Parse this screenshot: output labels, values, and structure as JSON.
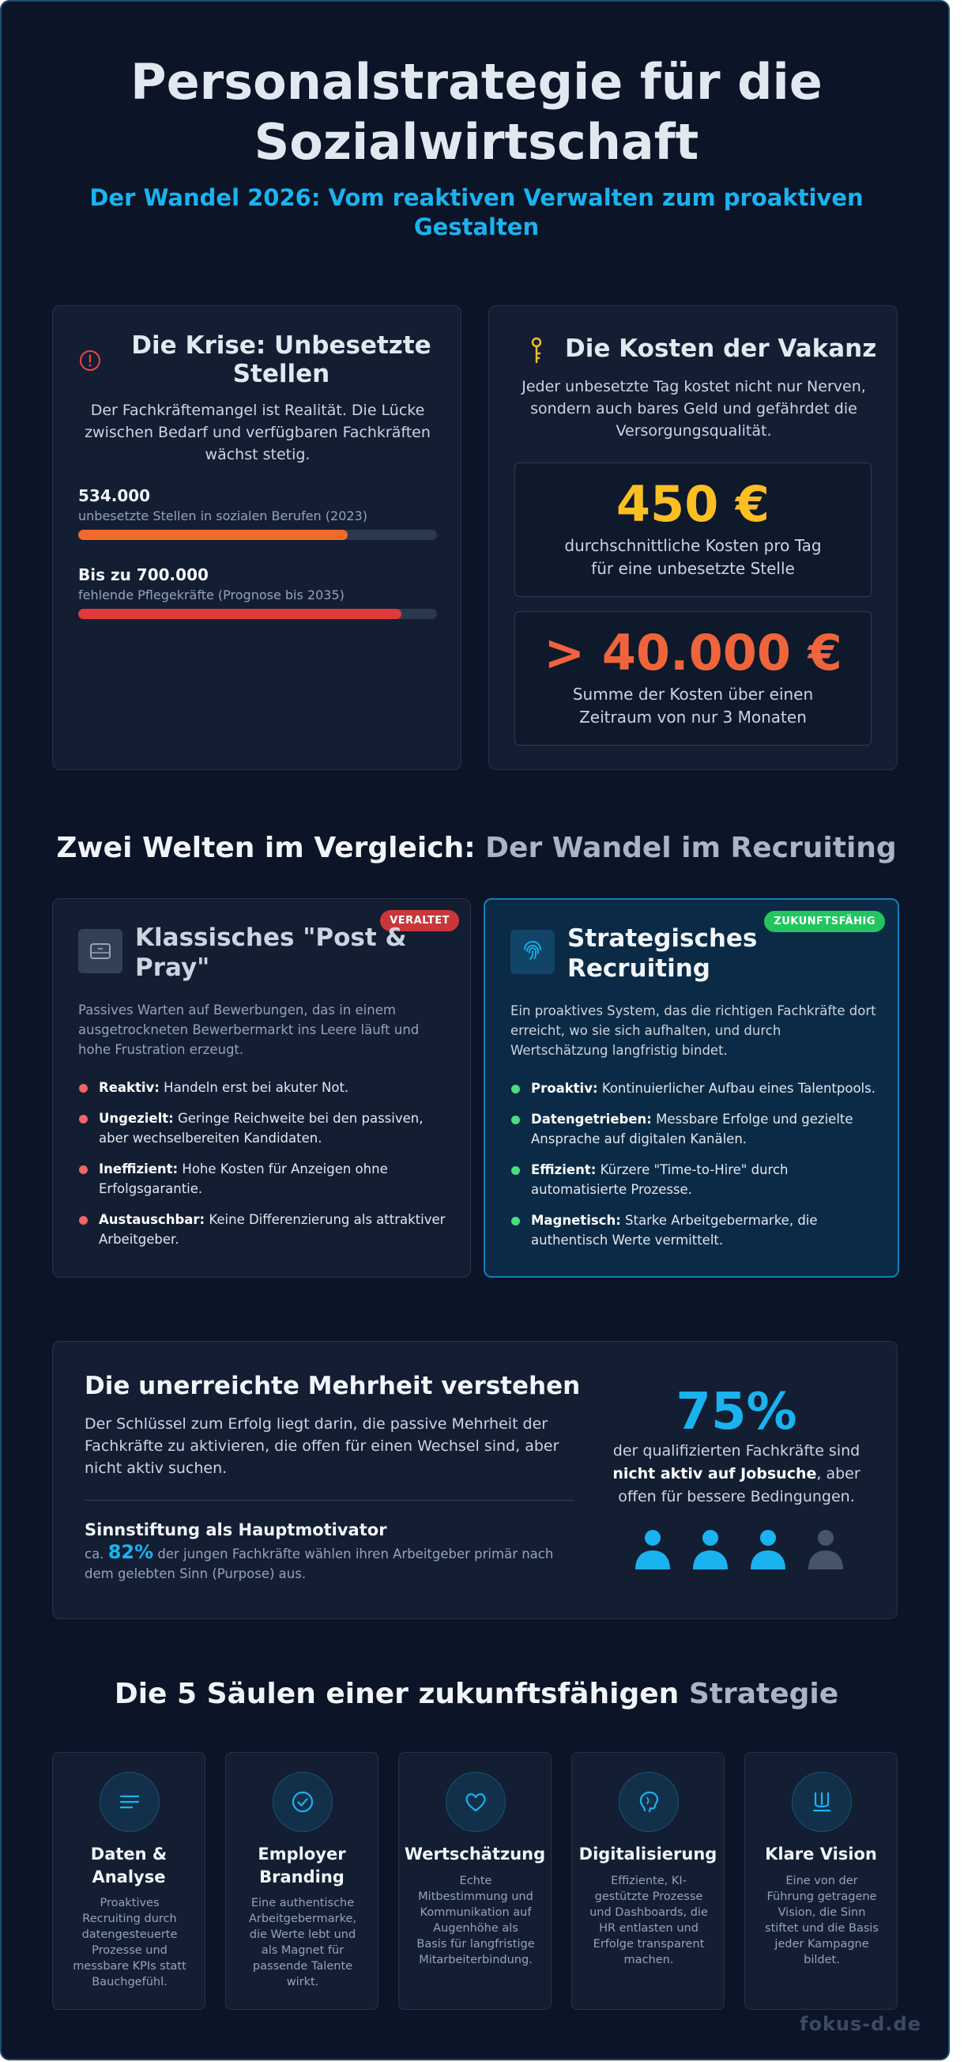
{
  "hero": {
    "title_line1": "Personalstrategie für die",
    "title_line2": "Sozialwirtschaft",
    "subtitle": "Der Wandel 2026: Vom reaktiven Verwalten zum proaktiven Gestalten"
  },
  "crisis": {
    "icon": "alert-circle-icon",
    "title": "Die Krise: Unbesetzte Stellen",
    "text": "Der Fachkräftemangel ist Realität. Die Lücke zwischen Bedarf und verfügbaren Fachkräften wächst stetig.",
    "stats": [
      {
        "value": "534.000",
        "label": "unbesetzte Stellen in sozialen Berufen (2023)",
        "fill": 0.75,
        "color": "#f06a2c"
      },
      {
        "value": "Bis zu 700.000",
        "label": "fehlende Pflegekräfte (Prognose bis 2035)",
        "fill": 0.9,
        "color": "#e23a3a"
      }
    ]
  },
  "costs": {
    "icon": "key-icon",
    "title": "Die Kosten der Vakanz",
    "text": "Jeder unbesetzte Tag kostet nicht nur Nerven, sondern auch bares Geld und gefährdet die Versorgungsqualität.",
    "per_day_value": "450 €",
    "per_day_desc": "durchschnittliche Kosten pro Tag für eine unbesetzte Stelle",
    "total_value": "> 40.000 €",
    "total_desc": "Summe der Kosten über einen Zeitraum von nur 3 Monaten",
    "colors": {
      "per_day": "#fbbf24",
      "total": "#f0643c"
    }
  },
  "comparison": {
    "title_main": "Zwei Welten im Vergleich:",
    "title_muted": "Der Wandel im Recruiting",
    "old": {
      "badge": "VERALTET",
      "icon": "inbox-icon",
      "title": "Klassisches \"Post & Pray\"",
      "intro": "Passives Warten auf Bewerbungen, das in einem ausgetrockneten Bewerbermarkt ins Leere läuft und hohe Frustration erzeugt.",
      "items": [
        {
          "bold": "Reaktiv:",
          "text": "Handeln erst bei akuter Not."
        },
        {
          "bold": "Ungezielt:",
          "text": "Geringe Reichweite bei den passiven, aber wechselbereiten Kandidaten."
        },
        {
          "bold": "Ineffizient:",
          "text": "Hohe Kosten für Anzeigen ohne Erfolgsgarantie."
        },
        {
          "bold": "Austauschbar:",
          "text": "Keine Differenzierung als attraktiver Arbeitgeber."
        }
      ]
    },
    "new": {
      "badge": "ZUKUNFTSFÄHIG",
      "icon": "fingerprint-icon",
      "title": "Strategisches Recruiting",
      "intro": "Ein proaktives System, das die richtigen Fachkräfte dort erreicht, wo sie sich aufhalten, und durch Wertschätzung langfristig bindet.",
      "items": [
        {
          "bold": "Proaktiv:",
          "text": "Kontinuierlicher Aufbau eines Talentpools."
        },
        {
          "bold": "Datengetrieben:",
          "text": "Messbare Erfolge und gezielte Ansprache auf digitalen Kanälen."
        },
        {
          "bold": "Effizient:",
          "text": "Kürzere \"Time-to-Hire\" durch automatisierte Prozesse."
        },
        {
          "bold": "Magnetisch:",
          "text": "Starke Arbeitgebermarke, die authentisch Werte vermittelt."
        }
      ]
    }
  },
  "majority": {
    "title": "Die unerreichte Mehrheit verstehen",
    "text": "Der Schlüssel zum Erfolg liegt darin, die passive Mehrheit der Fachkräfte zu aktivieren, die offen für einen Wechsel sind, aber nicht aktiv suchen.",
    "purpose_title": "Sinnstiftung als Hauptmotivator",
    "purpose_prefix": "ca.",
    "purpose_value": "82%",
    "purpose_text": "der jungen Fachkräfte wählen ihren Arbeitgeber primär nach dem gelebten Sinn (Purpose) aus.",
    "big_value": "75%",
    "big_text_1": "der qualifizierten Fachkräfte sind",
    "big_text_bold": "nicht aktiv auf Jobsuche",
    "big_text_2": ", aber offen für bessere Bedingungen.",
    "people_active": 3,
    "people_total": 4
  },
  "pillars": {
    "title_main": "Die 5 Säulen einer zukunftsfähigen",
    "title_muted": "Strategie",
    "items": [
      {
        "icon": "list-icon",
        "title_1": "Daten &",
        "title_2": "Analyse",
        "text": "Proaktives Recruiting durch datengesteuerte Prozesse und messbare KPIs statt Bauchgefühl."
      },
      {
        "icon": "check-circle-icon",
        "title_1": "Employer",
        "title_2": "Branding",
        "text": "Eine authentische Arbeitgebermarke, die Werte lebt und als Magnet für passende Talente wirkt."
      },
      {
        "icon": "heart-icon",
        "title_1": "Wertschätzung",
        "title_2": "",
        "text": "Echte Mitbestimmung und Kommunikation auf Augenhöhe als Basis für langfristige Mitarbeiterbindung."
      },
      {
        "icon": "brain-icon",
        "title_1": "Digitalisierung",
        "title_2": "",
        "text": "Effiziente, KI-gestützte Prozesse und Dashboards, die HR entlasten und Erfolge transparent machen."
      },
      {
        "icon": "trident-icon",
        "title_1": "Klare Vision",
        "title_2": "",
        "text": "Eine von der Führung getragene Vision, die Sinn stiftet und die Basis jeder Kampagne bildet."
      }
    ]
  },
  "footer": {
    "brand": "fokus-d.de"
  }
}
